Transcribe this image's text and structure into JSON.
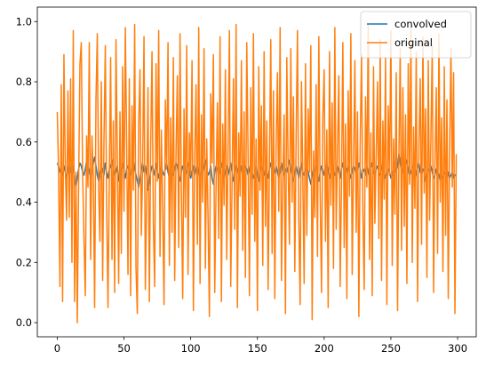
{
  "chart_data": {
    "type": "line",
    "x": [
      0,
      1,
      2,
      3,
      4,
      5,
      6,
      7,
      8,
      9,
      10,
      11,
      12,
      13,
      14,
      15,
      16,
      17,
      18,
      19,
      20,
      21,
      22,
      23,
      24,
      25,
      26,
      27,
      28,
      29,
      30,
      31,
      32,
      33,
      34,
      35,
      36,
      37,
      38,
      39,
      40,
      41,
      42,
      43,
      44,
      45,
      46,
      47,
      48,
      49,
      50,
      51,
      52,
      53,
      54,
      55,
      56,
      57,
      58,
      59,
      60,
      61,
      62,
      63,
      64,
      65,
      66,
      67,
      68,
      69,
      70,
      71,
      72,
      73,
      74,
      75,
      76,
      77,
      78,
      79,
      80,
      81,
      82,
      83,
      84,
      85,
      86,
      87,
      88,
      89,
      90,
      91,
      92,
      93,
      94,
      95,
      96,
      97,
      98,
      99,
      100,
      101,
      102,
      103,
      104,
      105,
      106,
      107,
      108,
      109,
      110,
      111,
      112,
      113,
      114,
      115,
      116,
      117,
      118,
      119,
      120,
      121,
      122,
      123,
      124,
      125,
      126,
      127,
      128,
      129,
      130,
      131,
      132,
      133,
      134,
      135,
      136,
      137,
      138,
      139,
      140,
      141,
      142,
      143,
      144,
      145,
      146,
      147,
      148,
      149,
      150,
      151,
      152,
      153,
      154,
      155,
      156,
      157,
      158,
      159,
      160,
      161,
      162,
      163,
      164,
      165,
      166,
      167,
      168,
      169,
      170,
      171,
      172,
      173,
      174,
      175,
      176,
      177,
      178,
      179,
      180,
      181,
      182,
      183,
      184,
      185,
      186,
      187,
      188,
      189,
      190,
      191,
      192,
      193,
      194,
      195,
      196,
      197,
      198,
      199,
      200,
      201,
      202,
      203,
      204,
      205,
      206,
      207,
      208,
      209,
      210,
      211,
      212,
      213,
      214,
      215,
      216,
      217,
      218,
      219,
      220,
      221,
      222,
      223,
      224,
      225,
      226,
      227,
      228,
      229,
      230,
      231,
      232,
      233,
      234,
      235,
      236,
      237,
      238,
      239,
      240,
      241,
      242,
      243,
      244,
      245,
      246,
      247,
      248,
      249,
      250,
      251,
      252,
      253,
      254,
      255,
      256,
      257,
      258,
      259,
      260,
      261,
      262,
      263,
      264,
      265,
      266,
      267,
      268,
      269,
      270,
      271,
      272,
      273,
      274,
      275,
      276,
      277,
      278,
      279,
      280,
      281,
      282,
      283,
      284,
      285,
      286,
      287,
      288,
      289,
      290,
      291,
      292,
      293,
      294,
      295,
      296,
      297,
      298,
      299
    ],
    "series": [
      {
        "name": "convolved",
        "color": "#1f77b4",
        "values": [
          0.53,
          0.52,
          0.5,
          0.51,
          0.49,
          0.52,
          0.5,
          0.48,
          0.51,
          0.53,
          0.5,
          0.49,
          0.52,
          0.47,
          0.45,
          0.48,
          0.51,
          0.53,
          0.52,
          0.5,
          0.49,
          0.51,
          0.54,
          0.52,
          0.5,
          0.48,
          0.5,
          0.53,
          0.55,
          0.52,
          0.49,
          0.47,
          0.5,
          0.52,
          0.51,
          0.49,
          0.53,
          0.5,
          0.48,
          0.51,
          0.52,
          0.54,
          0.51,
          0.49,
          0.5,
          0.52,
          0.47,
          0.49,
          0.51,
          0.53,
          0.5,
          0.48,
          0.51,
          0.52,
          0.5,
          0.49,
          0.52,
          0.54,
          0.51,
          0.49,
          0.47,
          0.45,
          0.48,
          0.51,
          0.53,
          0.5,
          0.52,
          0.49,
          0.44,
          0.47,
          0.5,
          0.52,
          0.51,
          0.49,
          0.53,
          0.5,
          0.48,
          0.51,
          0.52,
          0.5,
          0.49,
          0.51,
          0.53,
          0.5,
          0.48,
          0.52,
          0.5,
          0.49,
          0.51,
          0.53,
          0.52,
          0.49,
          0.47,
          0.5,
          0.52,
          0.51,
          0.49,
          0.5,
          0.53,
          0.51,
          0.48,
          0.5,
          0.52,
          0.49,
          0.51,
          0.53,
          0.5,
          0.48,
          0.51,
          0.5,
          0.52,
          0.54,
          0.51,
          0.49,
          0.5,
          0.52,
          0.48,
          0.46,
          0.5,
          0.52,
          0.51,
          0.49,
          0.5,
          0.53,
          0.51,
          0.48,
          0.5,
          0.52,
          0.49,
          0.51,
          0.53,
          0.5,
          0.47,
          0.49,
          0.52,
          0.51,
          0.49,
          0.5,
          0.52,
          0.48,
          0.5,
          0.52,
          0.51,
          0.49,
          0.51,
          0.53,
          0.5,
          0.48,
          0.5,
          0.52,
          0.49,
          0.47,
          0.5,
          0.52,
          0.51,
          0.49,
          0.52,
          0.5,
          0.48,
          0.51,
          0.53,
          0.51,
          0.49,
          0.5,
          0.52,
          0.5,
          0.48,
          0.51,
          0.53,
          0.5,
          0.49,
          0.51,
          0.5,
          0.52,
          0.54,
          0.51,
          0.49,
          0.47,
          0.5,
          0.52,
          0.5,
          0.48,
          0.51,
          0.53,
          0.5,
          0.49,
          0.51,
          0.52,
          0.5,
          0.48,
          0.46,
          0.49,
          0.51,
          0.5,
          0.52,
          0.49,
          0.47,
          0.5,
          0.52,
          0.51,
          0.49,
          0.51,
          0.53,
          0.5,
          0.48,
          0.5,
          0.52,
          0.51,
          0.49,
          0.5,
          0.52,
          0.5,
          0.48,
          0.51,
          0.53,
          0.5,
          0.49,
          0.51,
          0.52,
          0.5,
          0.48,
          0.5,
          0.52,
          0.51,
          0.49,
          0.5,
          0.53,
          0.51,
          0.48,
          0.5,
          0.51,
          0.49,
          0.52,
          0.5,
          0.48,
          0.51,
          0.53,
          0.5,
          0.49,
          0.51,
          0.52,
          0.5,
          0.49,
          0.51,
          0.53,
          0.5,
          0.48,
          0.49,
          0.51,
          0.5,
          0.48,
          0.49,
          0.51,
          0.53,
          0.5,
          0.52,
          0.56,
          0.53,
          0.5,
          0.51,
          0.49,
          0.52,
          0.54,
          0.51,
          0.49,
          0.5,
          0.52,
          0.51,
          0.48,
          0.5,
          0.52,
          0.53,
          0.5,
          0.49,
          0.51,
          0.5,
          0.47,
          0.49,
          0.51,
          0.5,
          0.52,
          0.5,
          0.48,
          0.49,
          0.51,
          0.5,
          0.49,
          0.47,
          0.49,
          0.48,
          0.5,
          0.49,
          0.47,
          0.5,
          0.48,
          0.49,
          0.5,
          0.48,
          0.49,
          0.49
        ]
      },
      {
        "name": "original",
        "color": "#ff7f0e",
        "values": [
          0.7,
          0.5,
          0.12,
          0.79,
          0.07,
          0.89,
          0.52,
          0.34,
          0.77,
          0.35,
          0.81,
          0.2,
          0.97,
          0.07,
          0.5,
          0.0,
          0.46,
          0.86,
          0.93,
          0.5,
          0.28,
          0.09,
          0.62,
          0.45,
          0.93,
          0.21,
          0.62,
          0.48,
          0.05,
          0.74,
          0.96,
          0.44,
          0.27,
          0.8,
          0.14,
          0.61,
          0.92,
          0.39,
          0.05,
          0.48,
          0.88,
          0.21,
          0.67,
          0.1,
          0.94,
          0.55,
          0.13,
          0.7,
          0.23,
          0.85,
          0.37,
          0.98,
          0.6,
          0.16,
          0.81,
          0.09,
          0.72,
          0.44,
          0.99,
          0.18,
          0.03,
          0.66,
          0.84,
          0.29,
          0.52,
          0.95,
          0.11,
          0.41,
          0.78,
          0.07,
          0.58,
          0.9,
          0.33,
          0.12,
          0.86,
          0.47,
          0.97,
          0.22,
          0.64,
          0.38,
          0.06,
          0.74,
          0.51,
          0.93,
          0.19,
          0.68,
          0.3,
          0.88,
          0.14,
          0.57,
          0.82,
          0.25,
          0.96,
          0.43,
          0.08,
          0.71,
          0.35,
          0.92,
          0.16,
          0.63,
          0.49,
          0.87,
          0.04,
          0.55,
          0.79,
          0.26,
          0.98,
          0.13,
          0.69,
          0.4,
          0.91,
          0.18,
          0.61,
          0.34,
          0.02,
          0.76,
          0.53,
          0.89,
          0.1,
          0.45,
          0.73,
          0.28,
          0.95,
          0.07,
          0.66,
          0.39,
          0.84,
          0.21,
          0.58,
          0.97,
          0.12,
          0.47,
          0.81,
          0.31,
          0.99,
          0.05,
          0.63,
          0.42,
          0.87,
          0.24,
          0.7,
          0.15,
          0.93,
          0.56,
          0.09,
          0.78,
          0.36,
          0.96,
          0.27,
          0.61,
          0.04,
          0.85,
          0.44,
          0.72,
          0.19,
          0.9,
          0.32,
          0.67,
          0.11,
          0.54,
          0.94,
          0.23,
          0.77,
          0.08,
          0.59,
          0.83,
          0.37,
          0.98,
          0.14,
          0.46,
          0.69,
          0.03,
          0.88,
          0.52,
          0.26,
          0.91,
          0.4,
          0.75,
          0.17,
          0.62,
          0.97,
          0.34,
          0.06,
          0.8,
          0.48,
          0.13,
          0.86,
          0.29,
          0.71,
          0.5,
          0.92,
          0.01,
          0.57,
          0.35,
          0.79,
          0.22,
          0.95,
          0.43,
          0.1,
          0.68,
          0.84,
          0.27,
          0.64,
          0.05,
          0.9,
          0.39,
          0.73,
          0.18,
          0.98,
          0.31,
          0.58,
          0.82,
          0.12,
          0.47,
          0.93,
          0.25,
          0.66,
          0.08,
          0.77,
          0.42,
          0.96,
          0.16,
          0.53,
          0.87,
          0.3,
          0.7,
          0.02,
          0.6,
          0.89,
          0.37,
          0.11,
          0.75,
          0.45,
          0.99,
          0.21,
          0.63,
          0.09,
          0.85,
          0.33,
          0.56,
          0.8,
          0.28,
          0.94,
          0.14,
          0.67,
          0.41,
          0.88,
          0.06,
          0.72,
          0.49,
          0.97,
          0.19,
          0.61,
          0.36,
          0.83,
          0.04,
          0.55,
          0.91,
          0.24,
          0.78,
          0.32,
          0.69,
          0.13,
          0.86,
          0.46,
          0.98,
          0.2,
          0.65,
          0.38,
          0.9,
          0.07,
          0.59,
          0.81,
          0.26,
          0.95,
          0.43,
          0.71,
          0.15,
          0.87,
          0.34,
          0.62,
          0.92,
          0.1,
          0.53,
          0.78,
          0.23,
          0.96,
          0.4,
          0.68,
          0.17,
          0.85,
          0.29,
          0.74,
          0.08,
          0.58,
          0.91,
          0.45,
          0.83,
          0.03,
          0.56
        ]
      }
    ],
    "xlim": [
      -14.95,
      313.95
    ],
    "xticks": [
      0,
      50,
      100,
      150,
      200,
      250,
      300
    ],
    "ylim": [
      -0.047,
      1.048
    ],
    "yticks": [
      {
        "value": 0,
        "label": "0.0"
      },
      {
        "value": 0.2,
        "label": "0.2"
      },
      {
        "value": 0.4,
        "label": "0.4"
      },
      {
        "value": 0.6,
        "label": "0.6"
      },
      {
        "value": 0.8,
        "label": "0.8"
      },
      {
        "value": 1.0,
        "label": "1.0"
      }
    ],
    "legend": "upper right"
  }
}
